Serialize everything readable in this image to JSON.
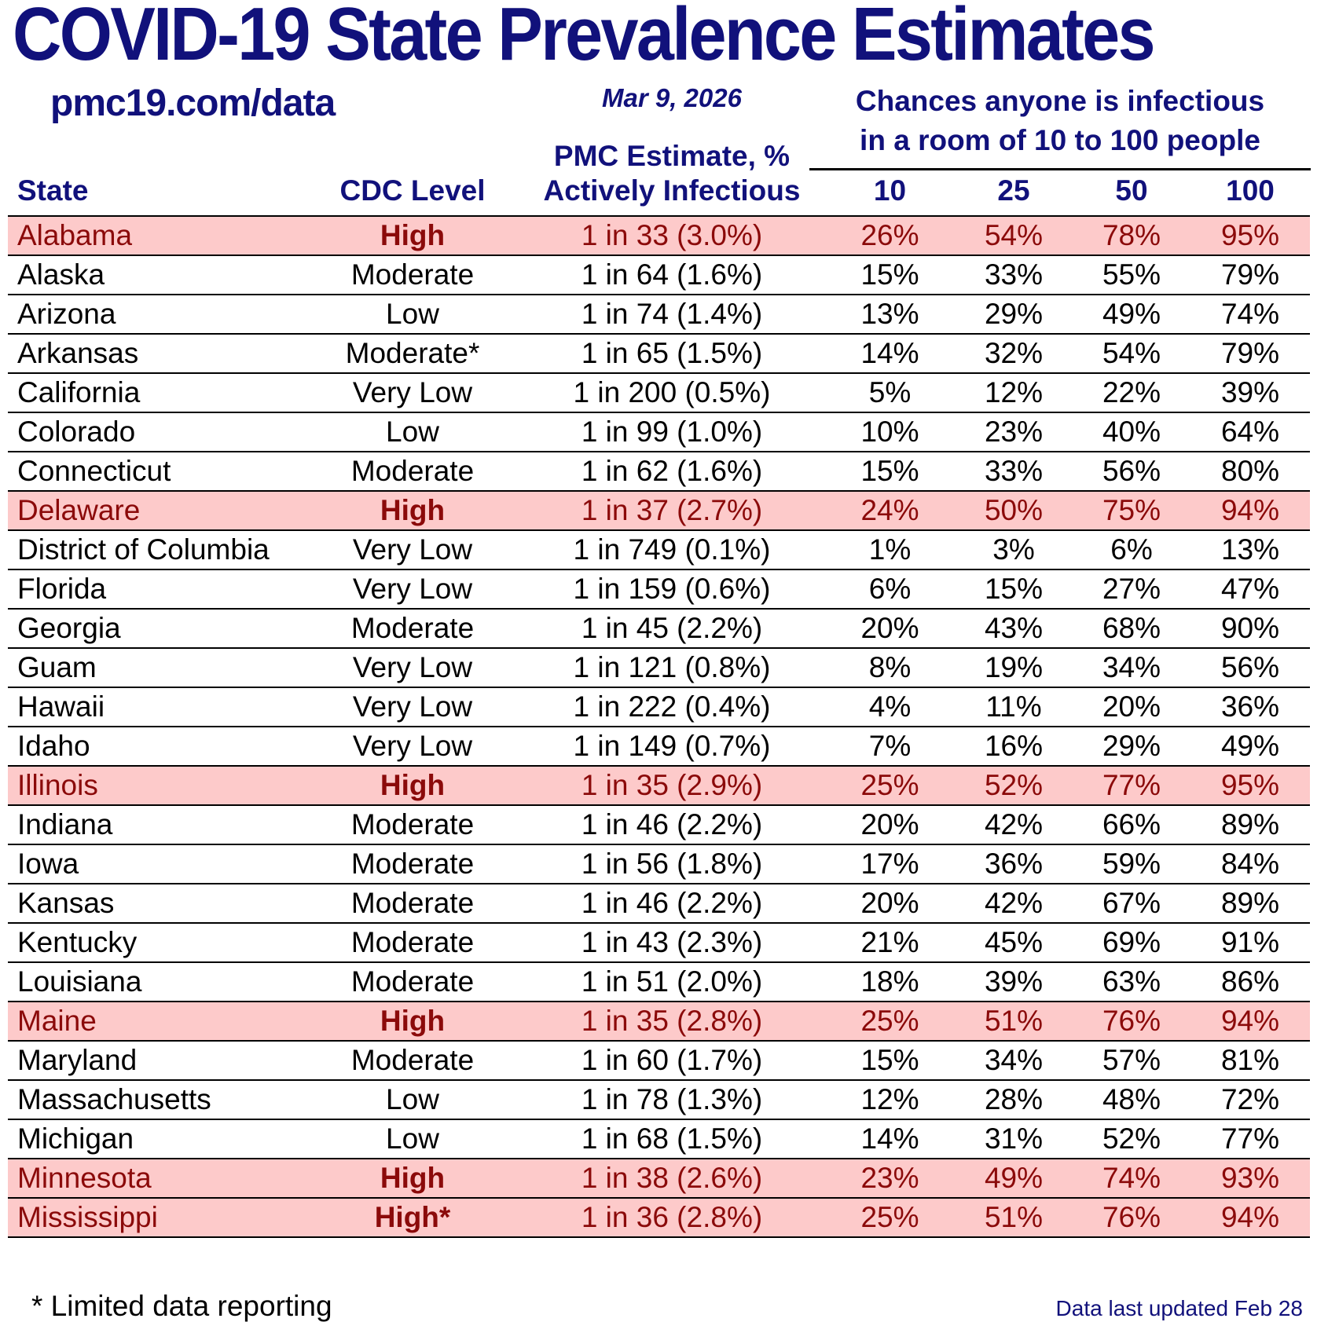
{
  "page": {
    "title": "COVID-19 State Prevalence Estimates",
    "url": "pmc19.com/data",
    "date": "Mar 9, 2026",
    "footnote": "* Limited data reporting",
    "last_updated": "Data last updated Feb 28"
  },
  "headers": {
    "pmc_line1": "PMC Estimate, %",
    "pmc_line2": "Actively Infectious",
    "chances_line1": "Chances anyone is infectious",
    "chances_line2": "in a room of 10 to 100 people",
    "state": "State",
    "cdc_level": "CDC Level",
    "room_sizes": [
      "10",
      "25",
      "50",
      "100"
    ]
  },
  "colors": {
    "navy": "#11117b",
    "dark_red": "#8b0a0a",
    "highlight_pink": "#fdcaca",
    "text_black": "#000000"
  },
  "table": {
    "rows": [
      {
        "state": "Alabama",
        "cdc_level": "High",
        "estimate": "1 in 33 (3.0%)",
        "p10": "26%",
        "p25": "54%",
        "p50": "78%",
        "p100": "95%",
        "highlight": true
      },
      {
        "state": "Alaska",
        "cdc_level": "Moderate",
        "estimate": "1 in 64 (1.6%)",
        "p10": "15%",
        "p25": "33%",
        "p50": "55%",
        "p100": "79%",
        "highlight": false
      },
      {
        "state": "Arizona",
        "cdc_level": "Low",
        "estimate": "1 in 74 (1.4%)",
        "p10": "13%",
        "p25": "29%",
        "p50": "49%",
        "p100": "74%",
        "highlight": false
      },
      {
        "state": "Arkansas",
        "cdc_level": "Moderate*",
        "estimate": "1 in 65 (1.5%)",
        "p10": "14%",
        "p25": "32%",
        "p50": "54%",
        "p100": "79%",
        "highlight": false
      },
      {
        "state": "California",
        "cdc_level": "Very Low",
        "estimate": "1 in 200 (0.5%)",
        "p10": "5%",
        "p25": "12%",
        "p50": "22%",
        "p100": "39%",
        "highlight": false
      },
      {
        "state": "Colorado",
        "cdc_level": "Low",
        "estimate": "1 in 99 (1.0%)",
        "p10": "10%",
        "p25": "23%",
        "p50": "40%",
        "p100": "64%",
        "highlight": false
      },
      {
        "state": "Connecticut",
        "cdc_level": "Moderate",
        "estimate": "1 in 62 (1.6%)",
        "p10": "15%",
        "p25": "33%",
        "p50": "56%",
        "p100": "80%",
        "highlight": false
      },
      {
        "state": "Delaware",
        "cdc_level": "High",
        "estimate": "1 in 37 (2.7%)",
        "p10": "24%",
        "p25": "50%",
        "p50": "75%",
        "p100": "94%",
        "highlight": true
      },
      {
        "state": "District of Columbia",
        "cdc_level": "Very Low",
        "estimate": "1 in 749 (0.1%)",
        "p10": "1%",
        "p25": "3%",
        "p50": "6%",
        "p100": "13%",
        "highlight": false
      },
      {
        "state": "Florida",
        "cdc_level": "Very Low",
        "estimate": "1 in 159 (0.6%)",
        "p10": "6%",
        "p25": "15%",
        "p50": "27%",
        "p100": "47%",
        "highlight": false
      },
      {
        "state": "Georgia",
        "cdc_level": "Moderate",
        "estimate": "1 in 45 (2.2%)",
        "p10": "20%",
        "p25": "43%",
        "p50": "68%",
        "p100": "90%",
        "highlight": false
      },
      {
        "state": "Guam",
        "cdc_level": "Very Low",
        "estimate": "1 in 121 (0.8%)",
        "p10": "8%",
        "p25": "19%",
        "p50": "34%",
        "p100": "56%",
        "highlight": false
      },
      {
        "state": "Hawaii",
        "cdc_level": "Very Low",
        "estimate": "1 in 222 (0.4%)",
        "p10": "4%",
        "p25": "11%",
        "p50": "20%",
        "p100": "36%",
        "highlight": false
      },
      {
        "state": "Idaho",
        "cdc_level": "Very Low",
        "estimate": "1 in 149 (0.7%)",
        "p10": "7%",
        "p25": "16%",
        "p50": "29%",
        "p100": "49%",
        "highlight": false
      },
      {
        "state": "Illinois",
        "cdc_level": "High",
        "estimate": "1 in 35 (2.9%)",
        "p10": "25%",
        "p25": "52%",
        "p50": "77%",
        "p100": "95%",
        "highlight": true
      },
      {
        "state": "Indiana",
        "cdc_level": "Moderate",
        "estimate": "1 in 46 (2.2%)",
        "p10": "20%",
        "p25": "42%",
        "p50": "66%",
        "p100": "89%",
        "highlight": false
      },
      {
        "state": "Iowa",
        "cdc_level": "Moderate",
        "estimate": "1 in 56 (1.8%)",
        "p10": "17%",
        "p25": "36%",
        "p50": "59%",
        "p100": "84%",
        "highlight": false
      },
      {
        "state": "Kansas",
        "cdc_level": "Moderate",
        "estimate": "1 in 46 (2.2%)",
        "p10": "20%",
        "p25": "42%",
        "p50": "67%",
        "p100": "89%",
        "highlight": false
      },
      {
        "state": "Kentucky",
        "cdc_level": "Moderate",
        "estimate": "1 in 43 (2.3%)",
        "p10": "21%",
        "p25": "45%",
        "p50": "69%",
        "p100": "91%",
        "highlight": false
      },
      {
        "state": "Louisiana",
        "cdc_level": "Moderate",
        "estimate": "1 in 51 (2.0%)",
        "p10": "18%",
        "p25": "39%",
        "p50": "63%",
        "p100": "86%",
        "highlight": false
      },
      {
        "state": "Maine",
        "cdc_level": "High",
        "estimate": "1 in 35 (2.8%)",
        "p10": "25%",
        "p25": "51%",
        "p50": "76%",
        "p100": "94%",
        "highlight": true
      },
      {
        "state": "Maryland",
        "cdc_level": "Moderate",
        "estimate": "1 in 60 (1.7%)",
        "p10": "15%",
        "p25": "34%",
        "p50": "57%",
        "p100": "81%",
        "highlight": false
      },
      {
        "state": "Massachusetts",
        "cdc_level": "Low",
        "estimate": "1 in 78 (1.3%)",
        "p10": "12%",
        "p25": "28%",
        "p50": "48%",
        "p100": "72%",
        "highlight": false
      },
      {
        "state": "Michigan",
        "cdc_level": "Low",
        "estimate": "1 in 68 (1.5%)",
        "p10": "14%",
        "p25": "31%",
        "p50": "52%",
        "p100": "77%",
        "highlight": false
      },
      {
        "state": "Minnesota",
        "cdc_level": "High",
        "estimate": "1 in 38 (2.6%)",
        "p10": "23%",
        "p25": "49%",
        "p50": "74%",
        "p100": "93%",
        "highlight": true
      },
      {
        "state": "Mississippi",
        "cdc_level": "High*",
        "estimate": "1 in 36 (2.8%)",
        "p10": "25%",
        "p25": "51%",
        "p50": "76%",
        "p100": "94%",
        "highlight": true
      }
    ]
  }
}
